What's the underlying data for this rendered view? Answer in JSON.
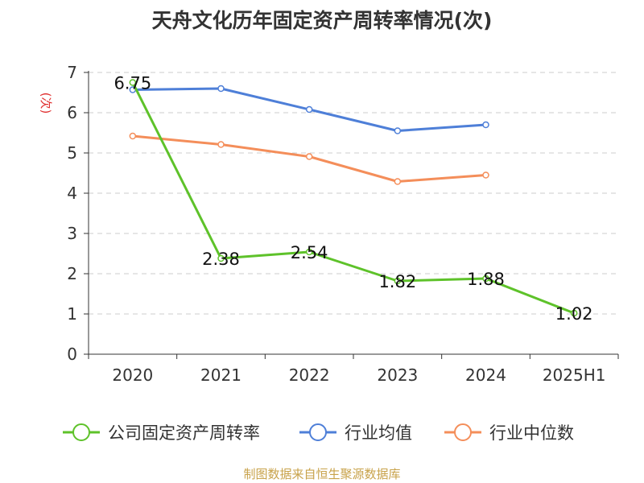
{
  "colors": {
    "company": "#5ec22a",
    "industry_avg": "#4e7fd8",
    "industry_median": "#f48e5a",
    "axis": "#333333",
    "grid": "#cccccc",
    "ylabel": "#e03030",
    "source": "#c8a24a"
  },
  "source_text": "制图数据来自恒生聚源数据库",
  "chart_data": {
    "type": "line",
    "title": "天舟文化历年固定资产周转率情况(次)",
    "ylabel": "(次)",
    "xlabel": "",
    "ylim": [
      0,
      7
    ],
    "yticks": [
      "0",
      "1",
      "2",
      "3",
      "4",
      "5",
      "6",
      "7"
    ],
    "grid": true,
    "legend_position": "bottom",
    "categories": [
      "2020",
      "2021",
      "2022",
      "2023",
      "2024",
      "2025H1"
    ],
    "series": [
      {
        "name": "公司固定资产周转率",
        "values": [
          6.75,
          2.38,
          2.54,
          1.82,
          1.88,
          1.02
        ],
        "labels": [
          "6.75",
          "2.38",
          "2.54",
          "1.82",
          "1.88",
          "1.02"
        ]
      },
      {
        "name": "行业均值",
        "values": [
          6.57,
          6.6,
          6.08,
          5.55,
          5.7,
          null
        ]
      },
      {
        "name": "行业中位数",
        "values": [
          5.42,
          5.21,
          4.91,
          4.29,
          4.45,
          null
        ]
      }
    ]
  }
}
